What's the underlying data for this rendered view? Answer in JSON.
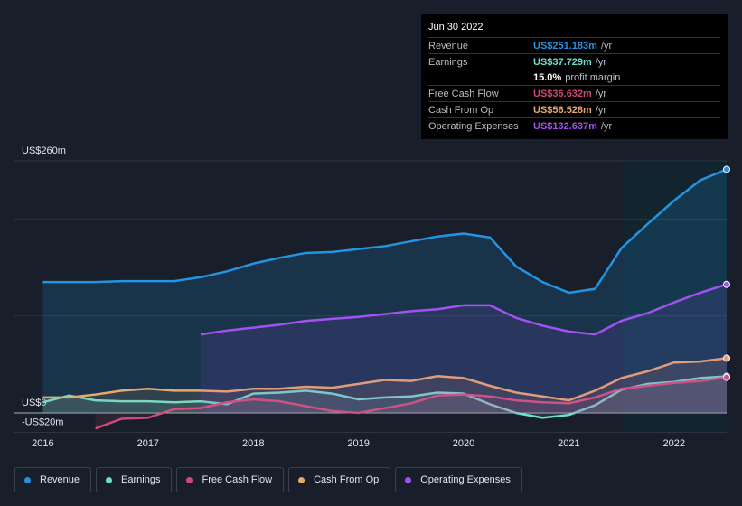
{
  "chart_data": {
    "type": "line",
    "x": [
      2016,
      2016.25,
      2016.5,
      2016.75,
      2017,
      2017.25,
      2017.5,
      2017.75,
      2018,
      2018.25,
      2018.5,
      2018.75,
      2019,
      2019.25,
      2019.5,
      2019.75,
      2020,
      2020.25,
      2020.5,
      2020.75,
      2021,
      2021.25,
      2021.5,
      2021.75,
      2022,
      2022.25,
      2022.5
    ],
    "series": [
      {
        "name": "Revenue",
        "color": "#2394df",
        "values": [
          135,
          135,
          135,
          136,
          136,
          136,
          140,
          146,
          154,
          160,
          165,
          166,
          169,
          172,
          177,
          182,
          185,
          181,
          151,
          135,
          124,
          128,
          170,
          195,
          219,
          240,
          251.183
        ]
      },
      {
        "name": "Earnings",
        "color": "#6ce0cf",
        "values": [
          11,
          18,
          13,
          12,
          12,
          11,
          12,
          9,
          20,
          21,
          23,
          20,
          14,
          16,
          17,
          21,
          20,
          9,
          0,
          -5,
          -2,
          8,
          24,
          30,
          32,
          36,
          37.729
        ]
      },
      {
        "name": "Free Cash Flow",
        "color": "#d1487c",
        "values": [
          null,
          null,
          -16,
          -6,
          -5,
          4,
          5,
          11,
          14,
          12,
          7,
          2,
          0,
          5,
          10,
          18,
          19,
          17,
          13,
          11,
          10,
          16,
          25,
          28,
          31,
          33,
          36.632
        ]
      },
      {
        "name": "Cash From Op",
        "color": "#e8a86b",
        "values": [
          16,
          16,
          19,
          23,
          25,
          23,
          23,
          22,
          25,
          25,
          27,
          26,
          30,
          34,
          33,
          38,
          36,
          28,
          21,
          17,
          13,
          23,
          36,
          43,
          52,
          53,
          56.528
        ]
      },
      {
        "name": "Operating Expenses",
        "color": "#a252f0",
        "values": [
          null,
          null,
          null,
          null,
          null,
          null,
          81,
          85,
          88,
          91,
          95,
          97,
          99,
          102,
          105,
          107,
          111,
          111,
          98,
          90,
          84,
          81,
          95,
          103,
          114,
          124,
          132.637
        ]
      }
    ],
    "xlim": [
      2015.73,
      2022.5
    ],
    "xticks": [
      2016,
      2017,
      2018,
      2019,
      2020,
      2021,
      2022
    ],
    "ylim": [
      -20,
      260
    ],
    "yticks": [
      {
        "value": -20,
        "label": "-US$20m"
      },
      {
        "value": 0,
        "label": "US$0"
      },
      {
        "value": 260,
        "label": "US$260m"
      }
    ],
    "gridlines": [
      100,
      200
    ],
    "tooltip": {
      "title": "Jun 30 2022",
      "rows": [
        {
          "label": "Revenue",
          "value": "US$251.183m",
          "unit": "/yr"
        },
        {
          "label": "Earnings",
          "value": "US$37.729m",
          "unit": "/yr"
        },
        {
          "label": "Free Cash Flow",
          "value": "US$36.632m",
          "unit": "/yr"
        },
        {
          "label": "Cash From Op",
          "value": "US$56.528m",
          "unit": "/yr"
        },
        {
          "label": "Operating Expenses",
          "value": "US$132.637m",
          "unit": "/yr"
        }
      ],
      "margin": {
        "value": "15.0%",
        "text": "profit margin"
      }
    }
  }
}
